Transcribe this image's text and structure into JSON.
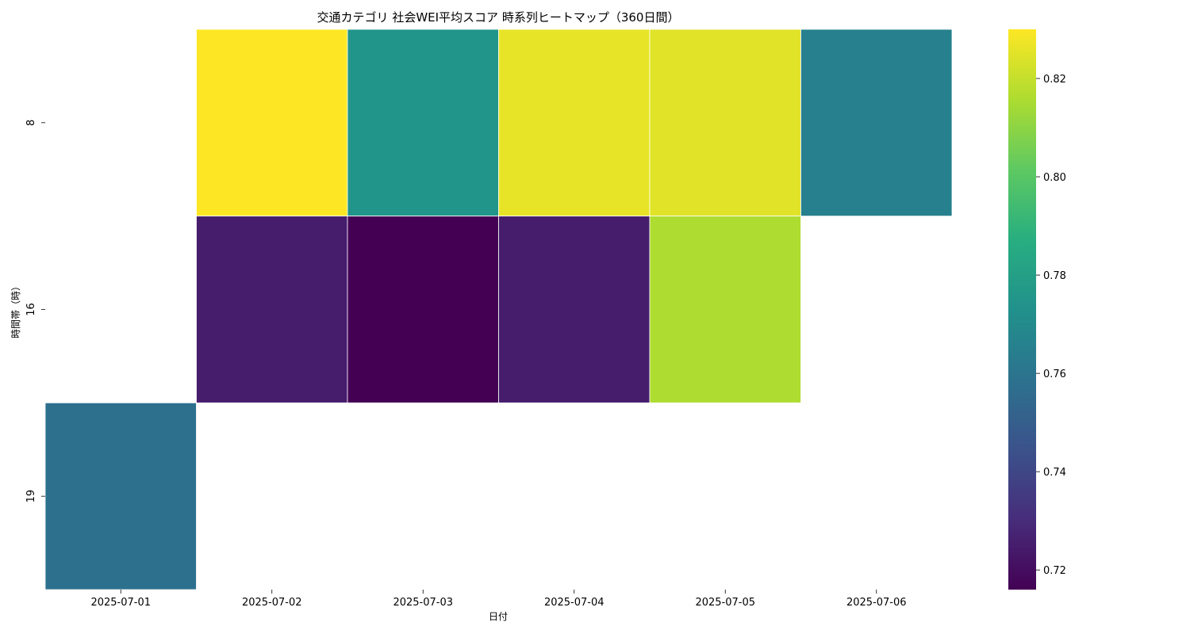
{
  "chart_data": {
    "type": "heatmap",
    "title": "交通カテゴリ 社会WEI平均スコア 時系列ヒートマップ（360日間）",
    "xlabel": "日付",
    "ylabel": "時間帯（時）",
    "x_categories": [
      "2025-07-01",
      "2025-07-02",
      "2025-07-03",
      "2025-07-04",
      "2025-07-05",
      "2025-07-06"
    ],
    "y_categories": [
      "8",
      "16",
      "19"
    ],
    "values": [
      [
        null,
        0.83,
        0.775,
        0.826,
        0.825,
        0.765
      ],
      [
        null,
        0.725,
        0.716,
        0.725,
        0.816,
        null
      ],
      [
        0.758,
        null,
        null,
        null,
        null,
        null
      ]
    ],
    "colormap": "viridis",
    "vmin": 0.716,
    "vmax": 0.83,
    "colorbar_ticks": [
      0.72,
      0.74,
      0.76,
      0.78,
      0.8,
      0.82
    ],
    "colorbar_tick_labels": [
      "0.72",
      "0.74",
      "0.76",
      "0.78",
      "0.80",
      "0.82"
    ],
    "grid": false,
    "legend": "colorbar-right"
  }
}
